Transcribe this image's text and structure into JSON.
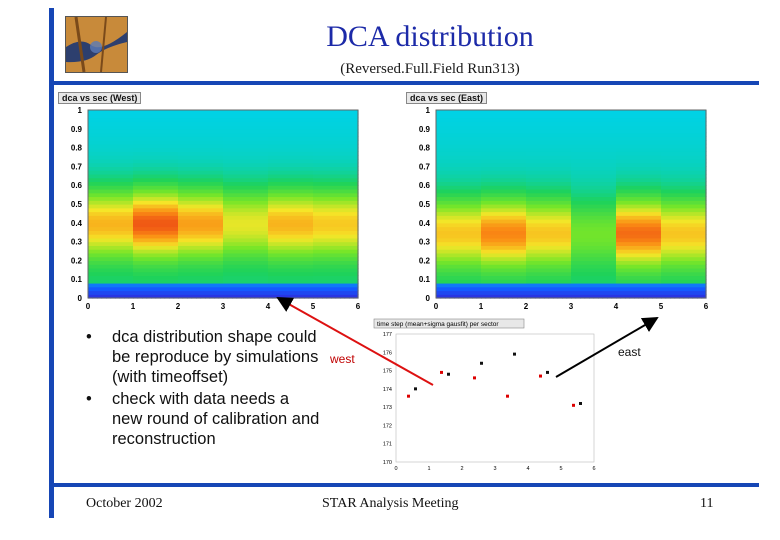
{
  "slide": {
    "title": "DCA distribution",
    "subtitle": "(Reversed.Full.Field Run313)",
    "logo_icon": "star-detector-logo",
    "accent_color": "#1646b5"
  },
  "plots": {
    "west_label": "dca vs sec (West)",
    "east_label": "dca vs sec (East)",
    "y_ticks": [
      "1",
      "0.9",
      "0.8",
      "0.7",
      "0.6",
      "0.5",
      "0.4",
      "0.3",
      "0.2",
      "0.1",
      "0"
    ],
    "x_ticks": [
      "0",
      "1",
      "2",
      "3",
      "4",
      "5",
      "6"
    ]
  },
  "inset": {
    "title": "time step (mean+sigma gausfit) per sector",
    "y_ticks": [
      "177",
      "176",
      "175",
      "174",
      "173",
      "172",
      "171",
      "170"
    ],
    "x_ticks": [
      "0",
      "1",
      "2",
      "3",
      "4",
      "5",
      "6"
    ],
    "west_label": "west",
    "east_label": "east"
  },
  "bullets": [
    "dca distribution shape could be reproduce by simulations (with timeoffset)",
    "check with data needs a new round of calibration and reconstruction"
  ],
  "footer": {
    "date": "October 2002",
    "meeting": "STAR Analysis Meeting",
    "page": "11"
  },
  "chart_data": [
    {
      "type": "heatmap",
      "title": "dca vs sec (West)",
      "x": [
        0,
        1,
        2,
        3,
        4,
        5,
        6
      ],
      "ylim": [
        0,
        1
      ],
      "xlim": [
        0,
        6
      ],
      "description_peak_y": 0.4
    },
    {
      "type": "heatmap",
      "title": "dca vs sec (East)",
      "x": [
        0,
        1,
        2,
        3,
        4,
        5,
        6
      ],
      "ylim": [
        0,
        1
      ],
      "xlim": [
        0,
        6
      ],
      "description_peak_y": 0.35
    },
    {
      "type": "scatter",
      "title": "time step (mean+sigma gausfit) per sector",
      "xlim": [
        0,
        6
      ],
      "ylim": [
        170,
        177
      ],
      "series": [
        {
          "name": "black",
          "x": [
            0.5,
            1.5,
            2.5,
            3.5,
            4.5,
            5.5
          ],
          "y": [
            174.0,
            174.8,
            175.4,
            175.9,
            174.9,
            173.2
          ]
        },
        {
          "name": "red",
          "x": [
            0.5,
            1.5,
            2.5,
            3.5,
            4.5,
            5.5
          ],
          "y": [
            173.6,
            174.9,
            174.6,
            173.6,
            174.7,
            173.1
          ]
        }
      ]
    }
  ]
}
